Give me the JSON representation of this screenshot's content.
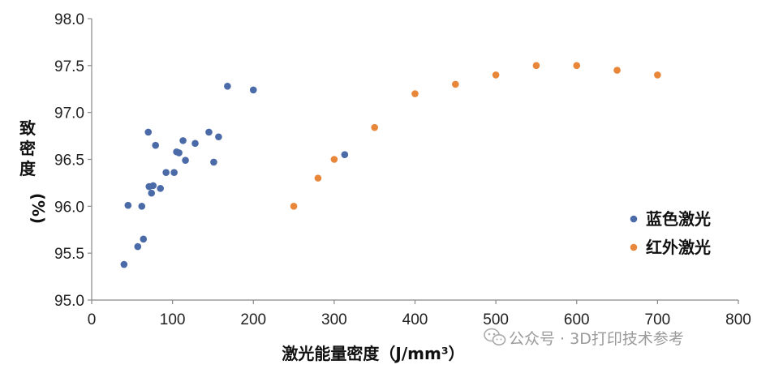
{
  "chart_data": {
    "type": "scatter",
    "xlabel": "激光能量密度（J/mm³）",
    "ylabel_chars": [
      "致",
      "密",
      "度"
    ],
    "ylabel_unit": "(%)",
    "xlim": [
      0,
      800
    ],
    "ylim": [
      95.0,
      98.0
    ],
    "xticks": [
      "0",
      "100",
      "200",
      "300",
      "400",
      "500",
      "600",
      "700",
      "800"
    ],
    "yticks": [
      "95.0",
      "95.5",
      "96.0",
      "96.5",
      "97.0",
      "97.5",
      "98.0"
    ],
    "grid": false,
    "legend_position": "right",
    "series": [
      {
        "name": "蓝色激光",
        "color": "#4a6aa8",
        "points": [
          {
            "x": 40,
            "y": 95.38
          },
          {
            "x": 45,
            "y": 96.01
          },
          {
            "x": 57,
            "y": 95.57
          },
          {
            "x": 62,
            "y": 96.0
          },
          {
            "x": 64,
            "y": 95.65
          },
          {
            "x": 70,
            "y": 96.79
          },
          {
            "x": 71,
            "y": 96.21
          },
          {
            "x": 74,
            "y": 96.14
          },
          {
            "x": 76,
            "y": 96.22
          },
          {
            "x": 79,
            "y": 96.65
          },
          {
            "x": 85,
            "y": 96.19
          },
          {
            "x": 92,
            "y": 96.36
          },
          {
            "x": 102,
            "y": 96.36
          },
          {
            "x": 105,
            "y": 96.58
          },
          {
            "x": 108,
            "y": 96.57
          },
          {
            "x": 113,
            "y": 96.7
          },
          {
            "x": 116,
            "y": 96.49
          },
          {
            "x": 128,
            "y": 96.67
          },
          {
            "x": 145,
            "y": 96.79
          },
          {
            "x": 151,
            "y": 96.47
          },
          {
            "x": 157,
            "y": 96.74
          },
          {
            "x": 168,
            "y": 97.28
          },
          {
            "x": 200,
            "y": 97.24
          },
          {
            "x": 313,
            "y": 96.55
          }
        ]
      },
      {
        "name": "红外激光",
        "color": "#e8873a",
        "points": [
          {
            "x": 250,
            "y": 96.0
          },
          {
            "x": 280,
            "y": 96.3
          },
          {
            "x": 300,
            "y": 96.5
          },
          {
            "x": 350,
            "y": 96.84
          },
          {
            "x": 400,
            "y": 97.2
          },
          {
            "x": 450,
            "y": 97.3
          },
          {
            "x": 500,
            "y": 97.4
          },
          {
            "x": 550,
            "y": 97.5
          },
          {
            "x": 600,
            "y": 97.5
          },
          {
            "x": 650,
            "y": 97.45
          },
          {
            "x": 700,
            "y": 97.4
          }
        ]
      }
    ]
  },
  "watermark": {
    "text": "公众号 · 3D打印技术参考",
    "icon": "wechat-icon"
  }
}
